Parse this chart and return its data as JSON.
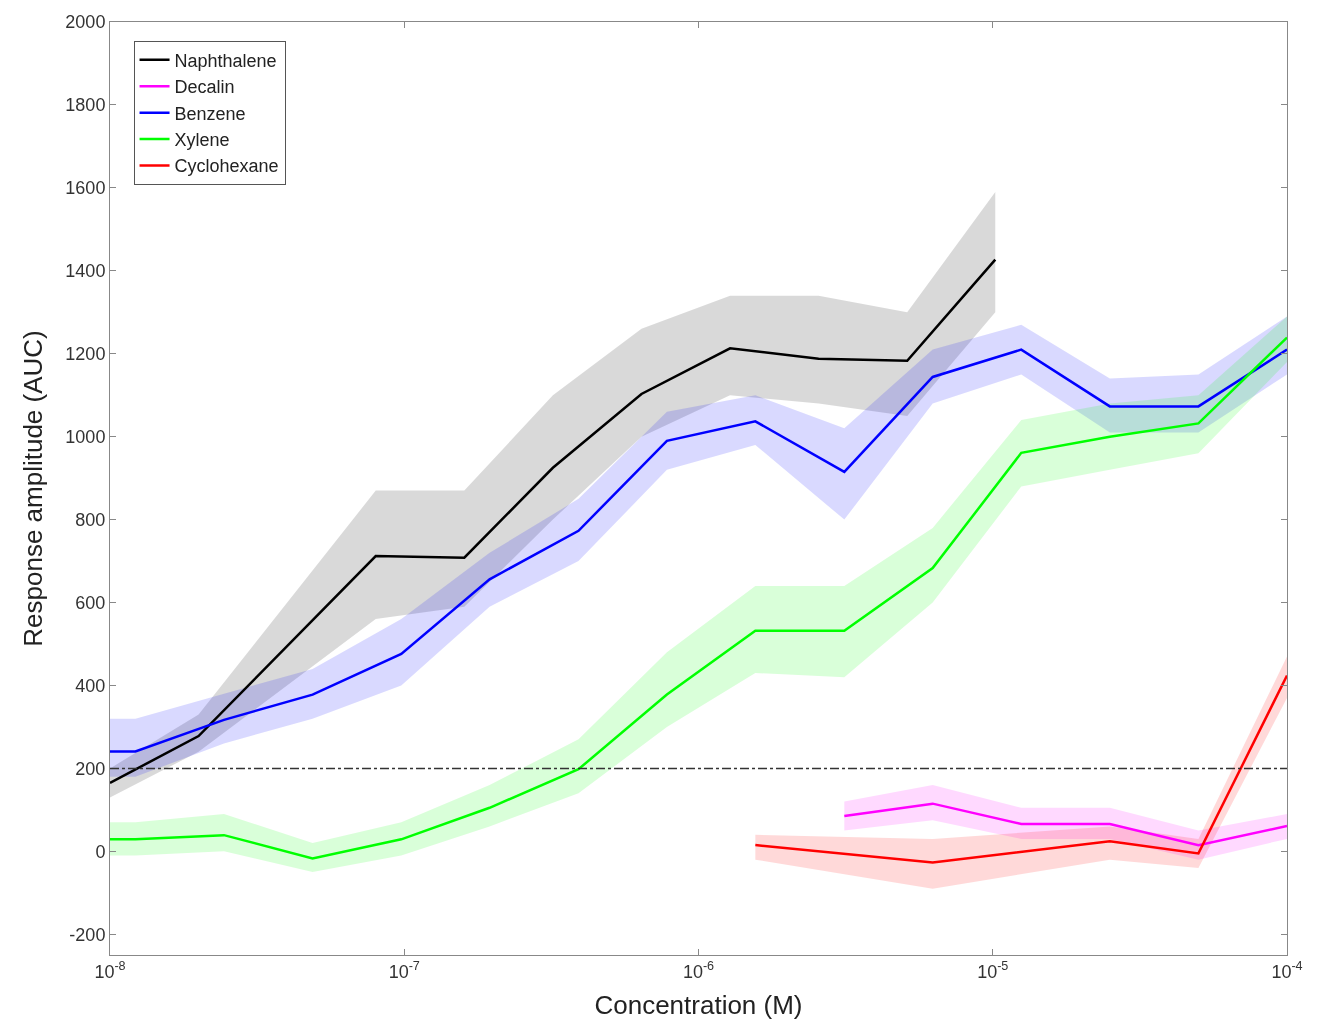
{
  "chart_data": {
    "type": "line",
    "xlabel": "Concentration (M)",
    "ylabel": "Response amplitude (AUC)",
    "log": "x",
    "xlim": [
      1e-08,
      0.0001
    ],
    "xticks": [
      {
        "value": 1e-08,
        "label": "10$^{-8}$"
      },
      {
        "value": 1e-07,
        "label": "10$^{-7}$"
      },
      {
        "value": 1e-06,
        "label": "10$^{-6}$"
      },
      {
        "value": 1e-05,
        "label": "10$^{-5}$"
      },
      {
        "value": 0.0001,
        "label": "10$^{-4}$"
      }
    ],
    "ylim": [
      -250,
      2000
    ],
    "yticks": [
      -200,
      0,
      200,
      400,
      600,
      800,
      1000,
      1200,
      1400,
      1600,
      1800,
      2000
    ],
    "grid": false,
    "legend": "top left",
    "line_style": "solid",
    "marker": "none",
    "ref_lines": [
      {
        "axis": "y",
        "value": 200,
        "color": "#333333",
        "line_style": "dashdot"
      }
    ],
    "series": [
      {
        "name": "Naphthalene",
        "color": "#000000",
        "x": [
          1e-08,
          2e-08,
          8e-08,
          1.6e-07,
          3.2e-07,
          6.4e-07,
          1.28e-06,
          2.56e-06,
          5.12e-06,
          1.02e-05
        ],
        "values": [
          165,
          278,
          712,
          708,
          925,
          1103,
          1213,
          1188,
          1183,
          1427
        ],
        "lower": [
          130,
          240,
          560,
          590,
          800,
          1000,
          1100,
          1080,
          1050,
          1300
        ],
        "upper": [
          200,
          330,
          870,
          870,
          1100,
          1260,
          1340,
          1340,
          1300,
          1590
        ]
      },
      {
        "name": "Decalin",
        "color": "#ff00ff",
        "x": [
          3.13e-06,
          6.25e-06,
          1.25e-05,
          2.5e-05,
          5e-05,
          0.0001
        ],
        "values": [
          85,
          115,
          66,
          66,
          15,
          61
        ],
        "lower": [
          50,
          75,
          30,
          30,
          -20,
          30
        ],
        "upper": [
          120,
          160,
          105,
          105,
          50,
          90
        ]
      },
      {
        "name": "Benzene",
        "color": "#0000ff",
        "x": [
          1e-08,
          1.22e-08,
          2.44e-08,
          4.88e-08,
          9.77e-08,
          1.95e-07,
          3.91e-07,
          7.81e-07,
          1.56e-06,
          3.13e-06,
          6.25e-06,
          1.25e-05,
          2.5e-05,
          5e-05,
          0.0001
        ],
        "values": [
          241,
          241,
          317,
          378,
          476,
          656,
          773,
          990,
          1037,
          915,
          1144,
          1210,
          1073,
          1073,
          1210
        ],
        "lower": [
          180,
          180,
          260,
          320,
          400,
          590,
          700,
          920,
          980,
          800,
          1080,
          1150,
          1010,
          1010,
          1150
        ],
        "upper": [
          320,
          320,
          380,
          440,
          560,
          720,
          850,
          1060,
          1100,
          1020,
          1210,
          1270,
          1140,
          1150,
          1290
        ]
      },
      {
        "name": "Xylene",
        "color": "#00ff00",
        "x": [
          1e-08,
          1.22e-08,
          2.44e-08,
          4.88e-08,
          9.77e-08,
          1.95e-07,
          3.91e-07,
          7.81e-07,
          1.56e-06,
          3.13e-06,
          6.25e-06,
          1.25e-05,
          2.5e-05,
          5e-05,
          0.0001
        ],
        "values": [
          29,
          29,
          39,
          -17,
          29,
          105,
          198,
          378,
          532,
          532,
          683,
          961,
          1000,
          1032,
          1239
        ],
        "lower": [
          -10,
          -10,
          0,
          -50,
          -10,
          60,
          140,
          300,
          430,
          420,
          600,
          880,
          920,
          960,
          1180
        ],
        "upper": [
          70,
          70,
          90,
          20,
          70,
          160,
          270,
          480,
          640,
          640,
          780,
          1040,
          1080,
          1100,
          1290
        ]
      },
      {
        "name": "Cyclohexane",
        "color": "#ff0000",
        "x": [
          1.56e-06,
          6.25e-06,
          2.5e-05,
          5e-05,
          0.0001
        ],
        "values": [
          15,
          -27,
          24,
          -5,
          424
        ],
        "lower": [
          -20,
          -90,
          -20,
          -40,
          370
        ],
        "upper": [
          40,
          30,
          60,
          30,
          470
        ]
      }
    ]
  }
}
